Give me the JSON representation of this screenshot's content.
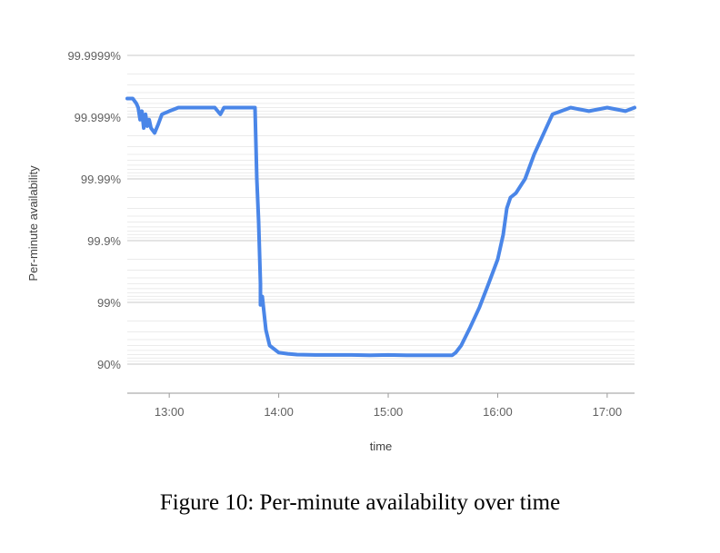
{
  "caption": "Figure 10: Per-minute availability over time",
  "chart_data": {
    "type": "line",
    "title": "",
    "xlabel": "time",
    "ylabel": "Per-minute availability",
    "y_scale": "log-unavailability",
    "y_ticks": [
      {
        "label": "99.9999%",
        "value": 99.9999
      },
      {
        "label": "99.999%",
        "value": 99.999
      },
      {
        "label": "99.99%",
        "value": 99.99
      },
      {
        "label": "99.9%",
        "value": 99.9
      },
      {
        "label": "99%",
        "value": 99
      },
      {
        "label": "90%",
        "value": 90
      }
    ],
    "x_ticks": [
      "13:00",
      "14:00",
      "15:00",
      "16:00",
      "17:00"
    ],
    "xlim": [
      "12:37",
      "17:15"
    ],
    "grid": true,
    "line_color": "#4a86e8",
    "series": [
      {
        "x": [
          "12:37",
          "12:40",
          "12:42",
          "12:43",
          "12:44",
          "12:45",
          "12:46",
          "12:47",
          "12:48",
          "12:49",
          "12:50",
          "12:52",
          "12:54",
          "12:56",
          "13:00",
          "13:05",
          "13:10",
          "13:15",
          "13:20",
          "13:25",
          "13:28",
          "13:30",
          "13:35",
          "13:40",
          "13:45",
          "13:47",
          "13:48",
          "13:49",
          "13:50",
          "13:50",
          "13:51",
          "13:52",
          "13:53",
          "13:55",
          "14:00",
          "14:05",
          "14:10",
          "14:20",
          "14:30",
          "14:40",
          "14:50",
          "15:00",
          "15:10",
          "15:20",
          "15:30",
          "15:35",
          "15:37",
          "15:40",
          "15:45",
          "15:50",
          "15:55",
          "16:00",
          "16:03",
          "16:05",
          "16:07",
          "16:10",
          "16:15",
          "16:20",
          "16:30",
          "16:40",
          "16:50",
          "17:00",
          "17:10",
          "17:15"
        ],
        "y": [
          99.9995,
          99.9995,
          99.9994,
          99.9993,
          99.9989,
          99.9992,
          99.9985,
          99.9991,
          99.9986,
          99.9989,
          99.9985,
          99.9982,
          99.9987,
          99.9991,
          99.9992,
          99.9993,
          99.9993,
          99.9993,
          99.9993,
          99.9993,
          99.9991,
          99.9993,
          99.9993,
          99.9993,
          99.9993,
          99.9993,
          99.99,
          99.95,
          99.5,
          98.9,
          99.2,
          98.5,
          97.2,
          95.0,
          93.5,
          93.2,
          93.0,
          92.9,
          92.9,
          92.9,
          92.8,
          92.9,
          92.8,
          92.8,
          92.8,
          92.8,
          93.5,
          95.0,
          97.5,
          98.8,
          99.5,
          99.8,
          99.92,
          99.97,
          99.98,
          99.983,
          99.99,
          99.996,
          99.9991,
          99.9993,
          99.9992,
          99.9993,
          99.9992,
          99.9993
        ]
      }
    ]
  }
}
